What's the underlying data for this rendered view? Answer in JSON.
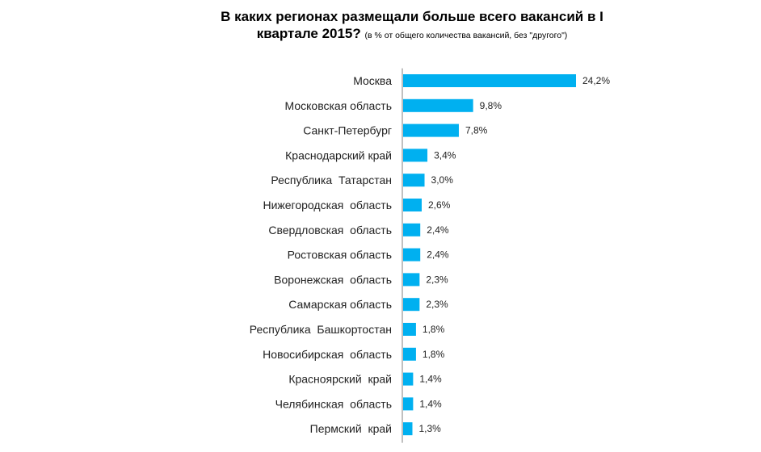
{
  "chart_data": {
    "type": "bar",
    "orientation": "horizontal",
    "title": "В каких регионах размещали больше всего вакансий в I квартале 2015?",
    "title_line1": "В каких регионах размещали больше всего вакансий в I",
    "title_line2": "квартале 2015?",
    "subtitle": "(в % от общего количества вакансий, без \"другого\")",
    "categories": [
      "Москва",
      "Московская область",
      "Санкт-Петербург",
      "Краснодарский край",
      "Республика  Татарстан",
      "Нижегородская  область",
      "Свердловская  область",
      "Ростовская область",
      "Воронежская  область",
      "Самарская область",
      "Республика  Башкортостан",
      "Новосибирская  область",
      "Красноярский  край",
      "Челябинская  область",
      "Пермский  край"
    ],
    "values": [
      24.2,
      9.8,
      7.8,
      3.4,
      3.0,
      2.6,
      2.4,
      2.4,
      2.3,
      2.3,
      1.8,
      1.8,
      1.4,
      1.4,
      1.3
    ],
    "value_labels": [
      "24,2%",
      "9,8%",
      "7,8%",
      "3,4%",
      "3,0%",
      "2,6%",
      "2,4%",
      "2,4%",
      "2,3%",
      "2,3%",
      "1,8%",
      "1,8%",
      "1,4%",
      "1,4%",
      "1,3%"
    ],
    "xlim": [
      0,
      24.2
    ],
    "bar_color": "#00B0F0",
    "axis_color": "#808080"
  }
}
